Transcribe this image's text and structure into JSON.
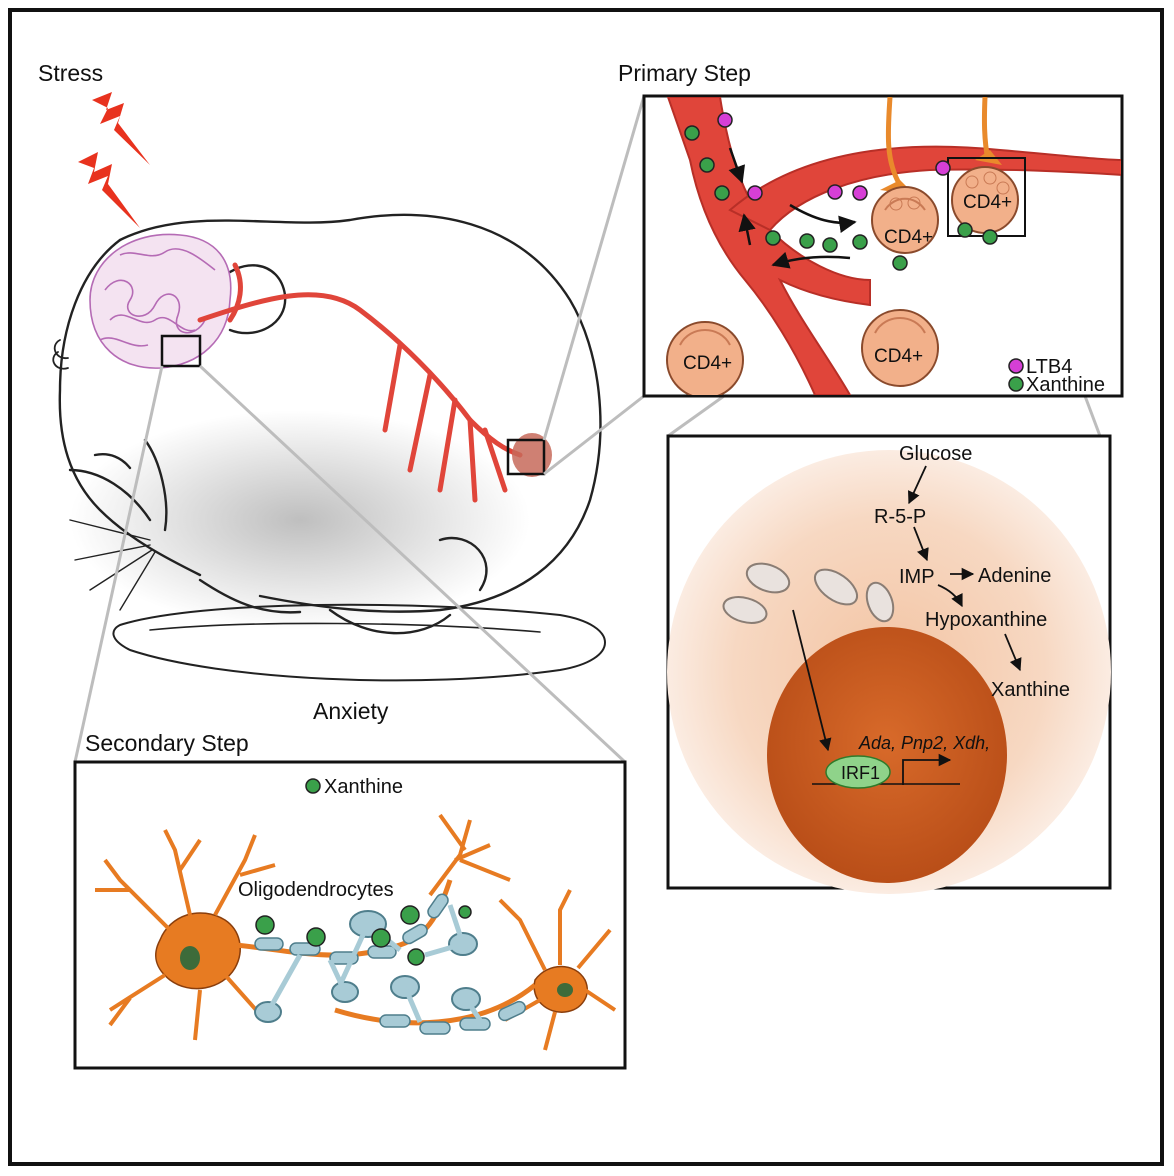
{
  "labels": {
    "stress": "Stress",
    "anxiety": "Anxiety",
    "primary_step": "Primary Step",
    "secondary_step": "Secondary Step"
  },
  "primary_panel": {
    "cells": [
      "CD4+",
      "CD4+",
      "CD4+",
      "CD4+"
    ],
    "legend": {
      "ltb4": "LTB4",
      "xanthine": "Xanthine"
    }
  },
  "pathway": {
    "glucose": "Glucose",
    "r5p": "R-5-P",
    "imp": "IMP",
    "adenine": "Adenine",
    "hypoxanthine": "Hypoxanthine",
    "xanthine": "Xanthine",
    "genes": "Ada, Pnp2, Xdh,",
    "tf": "IRF1"
  },
  "secondary_panel": {
    "legend_xanthine": "Xanthine",
    "oligodendrocytes": "Oligodendrocytes"
  },
  "colors": {
    "vessel": "#e0453a",
    "xanthine": "#3aa04a",
    "ltb4": "#d63fd6",
    "cell": "#f3b48a",
    "nucleus": "#c8581f",
    "neuron": "#e77b22",
    "oligo": "#a8cbd6"
  }
}
